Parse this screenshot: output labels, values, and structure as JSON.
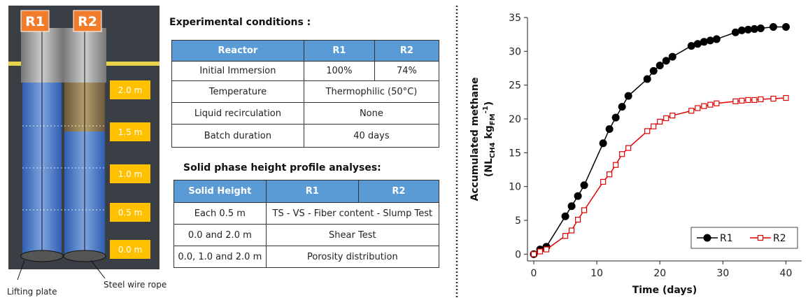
{
  "photo": {
    "reactor_labels": [
      "R1",
      "R2"
    ],
    "height_labels": [
      "2.0 m",
      "1.5 m",
      "1.0 m",
      "0.5 m",
      "0.0 m"
    ],
    "annotations": [
      "Lifting plate",
      "Steel wire rope"
    ]
  },
  "tables": [
    {
      "title": "Experimental conditions :",
      "header": [
        "Reactor",
        "R1",
        "R2"
      ],
      "rows": [
        [
          "Initial Immersion",
          "100%",
          "74%"
        ],
        [
          "Temperature",
          "Thermophilic (50°C)"
        ],
        [
          "Liquid recirculation",
          "None"
        ],
        [
          "Batch duration",
          "40 days"
        ]
      ]
    },
    {
      "title": "Solid phase height profile analyses:",
      "header": [
        "Solid Height",
        "R1",
        "R2"
      ],
      "rows": [
        [
          "Each 0.5 m",
          "TS - VS - Fiber content - Slump Test"
        ],
        [
          "0.0 and 2.0 m",
          "Shear Test"
        ],
        [
          "0.0, 1.0 and 2.0 m",
          "Porosity distribution"
        ]
      ]
    }
  ],
  "chart_data": {
    "type": "line",
    "x_label": "Time (days)",
    "y_label": "Accumulated methane",
    "y_label_unit": [
      "(NL",
      "CH4",
      " kg",
      "FM",
      "-1",
      ")"
    ],
    "x": [
      0,
      1,
      2,
      5,
      6,
      7,
      8,
      11,
      12,
      13,
      14,
      15,
      18,
      19,
      20,
      21,
      22,
      25,
      26,
      27,
      28,
      29,
      32,
      33,
      34,
      35,
      36,
      38,
      40
    ],
    "series": [
      {
        "name": "R1",
        "color": "#000000",
        "marker": "circle",
        "values": [
          0,
          0.7,
          1.1,
          5.6,
          7.1,
          8.6,
          10.2,
          16.4,
          18.5,
          20.2,
          21.8,
          23.4,
          25.9,
          27.1,
          27.9,
          28.6,
          29.2,
          30.8,
          31.1,
          31.4,
          31.6,
          31.8,
          32.8,
          33.1,
          33.2,
          33.3,
          33.4,
          33.6,
          33.6
        ]
      },
      {
        "name": "R2",
        "color": "#e00000",
        "marker": "square",
        "values": [
          0,
          0.4,
          0.7,
          2.7,
          3.5,
          5.1,
          6.5,
          10.7,
          11.8,
          13.2,
          14.8,
          15.7,
          18.2,
          18.9,
          19.6,
          20.1,
          20.5,
          21.2,
          21.6,
          21.9,
          22.1,
          22.3,
          22.6,
          22.7,
          22.8,
          22.8,
          22.9,
          23.0,
          23.1
        ]
      }
    ],
    "xlim": [
      -1,
      42.5
    ],
    "xticks": [
      0,
      10,
      20,
      30,
      40
    ],
    "ylim": [
      -1,
      35
    ],
    "yticks": [
      0,
      5,
      10,
      15,
      20,
      25,
      30,
      35
    ],
    "grid": false,
    "legend": "lower right"
  }
}
